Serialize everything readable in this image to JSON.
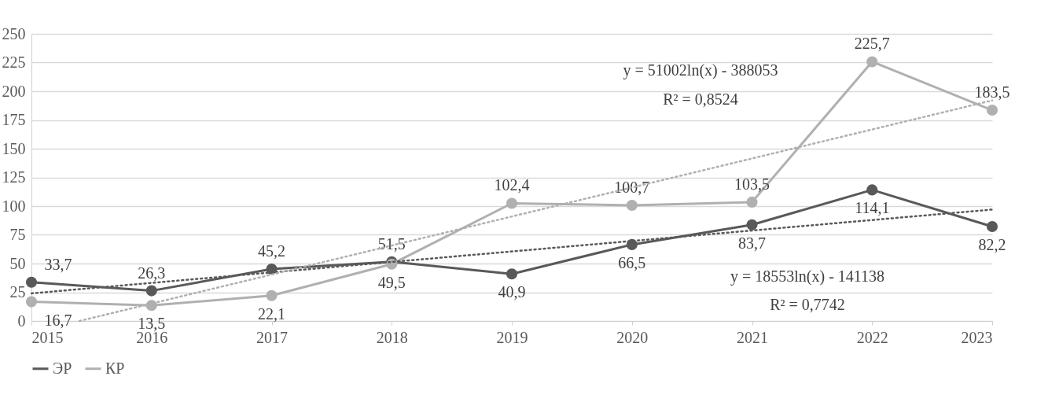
{
  "chart_data": {
    "type": "line",
    "x": [
      2015,
      2016,
      2017,
      2018,
      2019,
      2020,
      2021,
      2022,
      2023
    ],
    "xlim": [
      2015,
      2023
    ],
    "xticks": [
      2015,
      2016,
      2017,
      2018,
      2019,
      2020,
      2021,
      2022,
      2023
    ],
    "ylim": [
      0,
      250
    ],
    "yticks": [
      0,
      25,
      50,
      75,
      100,
      125,
      150,
      175,
      200,
      225,
      250
    ],
    "grid": "y",
    "legend": "bottom",
    "marker": "circle",
    "line_style": "solid",
    "series": [
      {
        "name": "ЭР",
        "color": "#595959",
        "values": [
          33.7,
          26.3,
          45.2,
          51.5,
          40.9,
          66.5,
          83.7,
          114.1,
          82.2
        ],
        "value_labels": [
          "33,7",
          "26,3",
          "45,2",
          "51,5",
          "40,9",
          "66,5",
          "83,7",
          "114,1",
          "82,2"
        ]
      },
      {
        "name": "КР",
        "color": "#b0b0b0",
        "values": [
          16.7,
          13.5,
          22.1,
          49.5,
          102.4,
          100.7,
          103.5,
          225.7,
          183.5
        ],
        "value_labels": [
          "16,7",
          "13,5",
          "22,1",
          "49,5",
          "102,4",
          "100,7",
          "103,5",
          "225,7",
          "183,5"
        ]
      },
      {
        "type": "line",
        "color": "#595959",
        "line_style": "dotted",
        "marker": "none",
        "x": [
          2015,
          2023
        ],
        "values": [
          24,
          97
        ]
      },
      {
        "type": "line",
        "color": "#b0b0b0",
        "line_style": "dotted",
        "marker": "none",
        "x": [
          2015.4,
          2023
        ],
        "values": [
          0,
          192
        ]
      }
    ],
    "annotations": [
      "y = 51002ln(x) - 388053",
      "R² = 0,8524",
      "y = 18553ln(x) - 141138",
      "R² = 0,7742"
    ]
  }
}
